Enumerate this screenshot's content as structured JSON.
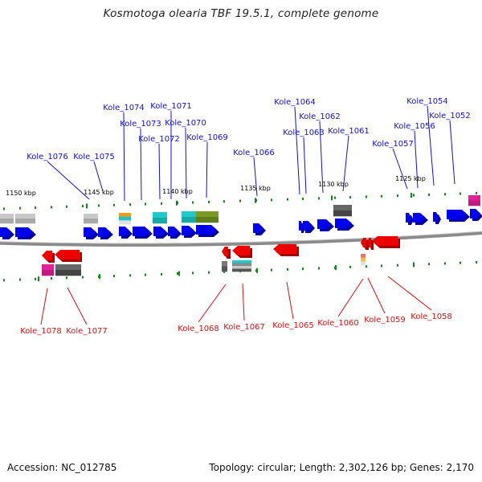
{
  "title": "Kosmotoga olearia TBF 19.5.1, complete genome",
  "footer": {
    "accession": "Accession: NC_012785",
    "summary": "Topology: circular; Length: 2,302,126 bp; Genes: 2,170"
  },
  "colors": {
    "forward_label": "#1010d8",
    "reverse_label": "#d81010",
    "forward_arrow": "#0000ee",
    "reverse_arrow": "#ee0000",
    "tick": "#118811",
    "backbone": "#8a8a8a"
  },
  "scale_labels": [
    "1150 kbp",
    "1145 kbp",
    "1140 kbp",
    "1135 kbp",
    "1130 kbp",
    "1125 kbp"
  ],
  "forward_genes": [
    "Kole_1076",
    "Kole_1075",
    "Kole_1074",
    "Kole_1073",
    "Kole_1072",
    "Kole_1071",
    "Kole_1070",
    "Kole_1069",
    "Kole_1066",
    "Kole_1064",
    "Kole_1063",
    "Kole_1062",
    "Kole_1061",
    "Kole_1057",
    "Kole_1056",
    "Kole_1054",
    "Kole_1052"
  ],
  "reverse_genes": [
    "Kole_1078",
    "Kole_1077",
    "Kole_1068",
    "Kole_1067",
    "Kole_1065",
    "Kole_1060",
    "Kole_1059",
    "Kole_1058"
  ]
}
